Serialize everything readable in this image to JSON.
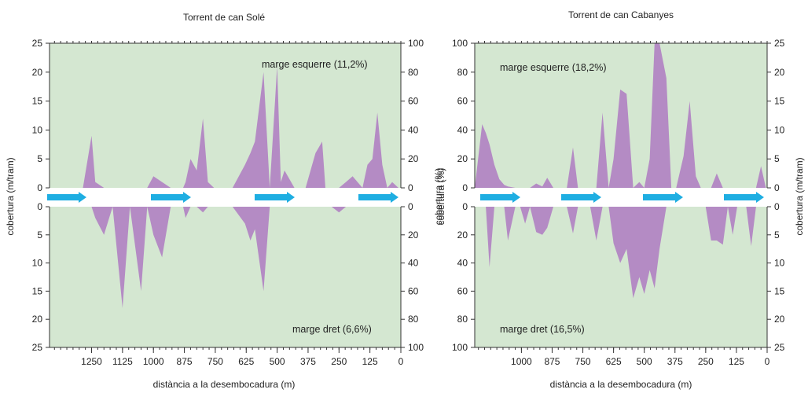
{
  "colors": {
    "plot_bg": "#d4e7d1",
    "area": "#b48bc4",
    "arrow": "#1eaee2",
    "band": "#ffffff",
    "axis": "#333333"
  },
  "chart_data": [
    {
      "type": "area",
      "title": "Torrent de can Solé",
      "xlabel": "distància a la desembocadura (m)",
      "ylabel_left": "cobertura (m/tram)",
      "ylabel_right": "cobertura (%)",
      "xlim": [
        1420,
        0
      ],
      "x_ticks": [
        1250,
        1125,
        1000,
        875,
        750,
        625,
        500,
        375,
        250,
        125,
        0
      ],
      "left_ticks": [
        0,
        5,
        10,
        15,
        20,
        25
      ],
      "right_ticks": [
        0,
        20,
        40,
        60,
        80,
        100
      ],
      "upper_scale": "left",
      "grid": false,
      "annotations": {
        "upper": "marge esquerre (11,2%)",
        "lower": "marge dret (6,6%)"
      },
      "series": [
        {
          "name": "marge esquerre",
          "x": [
            1360,
            1325,
            1300,
            1285,
            1250,
            1235,
            1200,
            1165,
            1125,
            1095,
            1050,
            1025,
            1000,
            965,
            930,
            900,
            880,
            870,
            850,
            825,
            800,
            780,
            755,
            720,
            700,
            680,
            630,
            608,
            590,
            555,
            530,
            500,
            485,
            470,
            430,
            408,
            385,
            345,
            318,
            305,
            280,
            250,
            222,
            195,
            155,
            135,
            115,
            95,
            75,
            55,
            35,
            10
          ],
          "values": [
            0,
            0,
            0,
            0,
            9,
            1,
            0,
            0,
            0,
            0,
            0,
            0,
            2,
            1,
            0,
            0,
            0,
            1,
            5,
            3,
            12,
            1,
            0,
            0,
            0,
            0,
            4,
            6,
            8,
            20,
            0,
            21,
            1,
            3,
            0,
            0,
            0,
            6,
            8,
            0,
            0,
            0,
            1,
            2,
            0,
            4,
            5,
            13,
            4,
            0,
            1,
            0
          ]
        },
        {
          "name": "marge dret",
          "x": [
            1360,
            1325,
            1300,
            1285,
            1250,
            1235,
            1200,
            1165,
            1125,
            1095,
            1050,
            1025,
            1000,
            965,
            930,
            900,
            880,
            870,
            850,
            825,
            800,
            780,
            755,
            720,
            700,
            680,
            630,
            608,
            590,
            555,
            530,
            500,
            485,
            470,
            430,
            408,
            385,
            345,
            318,
            305,
            280,
            250,
            222,
            195,
            155,
            135,
            115,
            95,
            75,
            55,
            35,
            10
          ],
          "values": [
            0,
            0,
            0,
            0,
            0,
            2,
            5,
            0,
            18,
            0,
            15,
            0,
            5,
            9,
            0,
            0,
            0,
            2,
            0,
            0,
            1,
            0,
            0,
            0,
            0,
            0,
            3,
            6,
            4,
            15,
            0,
            0,
            0,
            0,
            0,
            0,
            0,
            0,
            0,
            0,
            0,
            1,
            0,
            0,
            0,
            0,
            0,
            0,
            0,
            0,
            0,
            0
          ]
        }
      ]
    },
    {
      "type": "area",
      "title": "Torrent de can Cabanyes",
      "xlabel": "distància a la desembocadura (m)",
      "ylabel_left": "cobertura (%)",
      "ylabel_right": "cobertura (m/tram)",
      "xlim": [
        1190,
        0
      ],
      "x_ticks": [
        1000,
        875,
        750,
        625,
        500,
        375,
        250,
        125,
        0
      ],
      "left_ticks": [
        0,
        20,
        40,
        60,
        80,
        100
      ],
      "right_ticks": [
        0,
        5,
        10,
        15,
        20,
        25
      ],
      "upper_scale": "left",
      "grid": false,
      "annotations": {
        "upper": "marge esquerre (18,2%)",
        "lower": "marge dret (16,5%)"
      },
      "series": [
        {
          "name": "marge esquerre",
          "x": [
            1190,
            1160,
            1145,
            1130,
            1110,
            1090,
            1070,
            1055,
            1025,
            1005,
            985,
            965,
            940,
            915,
            895,
            870,
            845,
            815,
            790,
            770,
            750,
            720,
            695,
            670,
            645,
            625,
            598,
            572,
            545,
            520,
            500,
            478,
            458,
            438,
            410,
            390,
            370,
            340,
            315,
            290,
            270,
            250,
            228,
            205,
            180,
            160,
            140,
            122,
            105,
            85,
            65,
            45,
            25,
            5
          ],
          "values": [
            0,
            44,
            38,
            30,
            16,
            6,
            2,
            1,
            0,
            0,
            0,
            0,
            3,
            1,
            7,
            0,
            0,
            0,
            28,
            0,
            0,
            0,
            0,
            52,
            0,
            20,
            68,
            65,
            0,
            4,
            0,
            20,
            100,
            100,
            76,
            0,
            0,
            22,
            60,
            8,
            0,
            0,
            0,
            10,
            0,
            0,
            0,
            0,
            0,
            0,
            0,
            0,
            15,
            0
          ]
        },
        {
          "name": "marge dret",
          "x": [
            1190,
            1160,
            1145,
            1130,
            1110,
            1090,
            1070,
            1055,
            1025,
            1005,
            985,
            965,
            940,
            915,
            895,
            870,
            845,
            815,
            790,
            770,
            750,
            720,
            695,
            670,
            645,
            625,
            598,
            572,
            545,
            520,
            500,
            478,
            458,
            438,
            410,
            390,
            370,
            340,
            315,
            290,
            270,
            250,
            228,
            205,
            180,
            160,
            140,
            122,
            105,
            85,
            65,
            45,
            25,
            5
          ],
          "values": [
            0,
            0,
            0,
            43,
            0,
            0,
            0,
            24,
            0,
            0,
            12,
            0,
            18,
            20,
            15,
            0,
            0,
            0,
            19,
            0,
            0,
            0,
            24,
            0,
            0,
            26,
            40,
            30,
            65,
            50,
            62,
            45,
            58,
            30,
            0,
            0,
            0,
            0,
            0,
            0,
            0,
            0,
            24,
            24,
            27,
            0,
            20,
            0,
            0,
            0,
            28,
            0,
            0,
            0
          ]
        }
      ]
    }
  ]
}
